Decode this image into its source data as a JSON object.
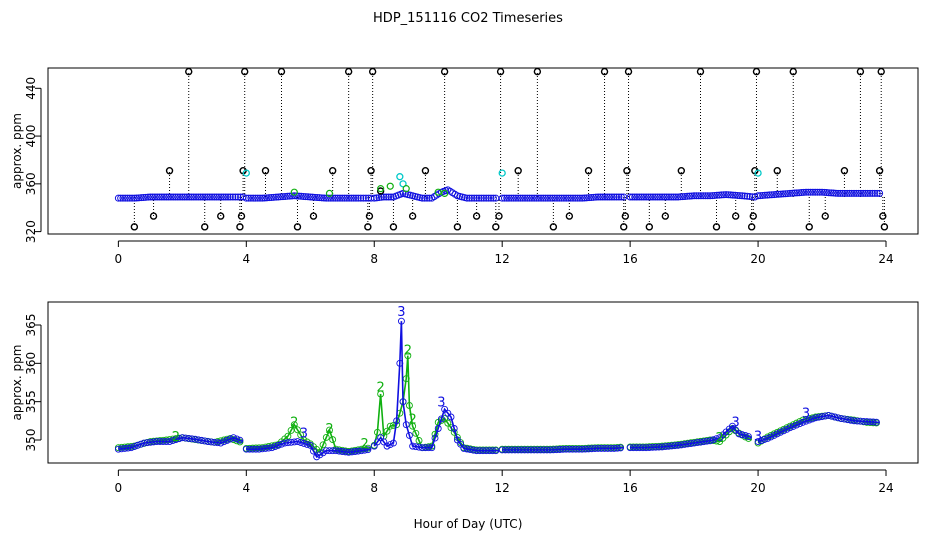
{
  "figure": {
    "title": "HDP_151116  CO2 Timeseries",
    "xlabel": "Hour of Day (UTC)"
  },
  "chart_data": [
    {
      "type": "scatter",
      "title": "HDP_151116  CO2 Timeseries",
      "xlabel": "",
      "ylabel": "approx. ppm",
      "xlim": [
        -2.2,
        25
      ],
      "ylim": [
        318,
        457
      ],
      "xticks": [
        0,
        4,
        8,
        12,
        16,
        20,
        24
      ],
      "yticks": [
        320,
        360,
        400,
        440
      ],
      "ytick_labels": [
        "320",
        "360",
        "400",
        "440"
      ],
      "colors": {
        "baseline": "#1010e0",
        "flag": "#000000",
        "cyan": "#00c8c8",
        "green": "#10b010"
      },
      "baseline_segments": [
        {
          "name": "segment 1",
          "x": [
            0.0,
            0.5,
            1.0,
            1.5,
            2.0,
            2.5,
            3.0,
            3.5,
            3.9
          ],
          "y": [
            348,
            348,
            349,
            349,
            349,
            349,
            349,
            349,
            349
          ]
        },
        {
          "name": "segment 2",
          "x": [
            4.0,
            4.5,
            5.0,
            5.5,
            6.0,
            6.5,
            7.0,
            7.5,
            7.9
          ],
          "y": [
            348,
            348,
            349,
            350,
            349,
            348,
            348,
            348,
            348
          ]
        },
        {
          "name": "segment 3",
          "x": [
            8.0,
            8.3,
            8.6,
            8.9,
            9.2,
            9.5,
            9.8,
            10.1,
            10.3,
            10.6,
            10.9,
            11.2,
            11.5,
            11.8
          ],
          "y": [
            348,
            349,
            349,
            352,
            350,
            348,
            348,
            353,
            355,
            350,
            348,
            348,
            348,
            348
          ]
        },
        {
          "name": "segment 4",
          "x": [
            12.0,
            12.5,
            13.0,
            13.5,
            14.0,
            14.5,
            15.0,
            15.5,
            15.8
          ],
          "y": [
            348,
            348,
            348,
            348,
            348,
            348,
            349,
            349,
            349
          ]
        },
        {
          "name": "segment 5",
          "x": [
            16.0,
            16.5,
            17.0,
            17.5,
            18.0,
            18.5,
            19.0,
            19.5,
            19.9
          ],
          "y": [
            349,
            349,
            349,
            349,
            350,
            350,
            351,
            350,
            349
          ]
        },
        {
          "name": "segment 6",
          "x": [
            20.0,
            20.5,
            21.0,
            21.5,
            22.0,
            22.5,
            23.0,
            23.5,
            23.8
          ],
          "y": [
            350,
            351,
            352,
            353,
            353,
            352,
            352,
            352,
            352
          ]
        }
      ],
      "flag_points": {
        "x": [
          0.5,
          1.1,
          1.6,
          2.2,
          2.7,
          3.2,
          3.8,
          3.85,
          3.9,
          3.95,
          4.6,
          5.1,
          5.6,
          6.1,
          6.7,
          7.2,
          7.8,
          7.85,
          7.9,
          7.95,
          8.2,
          8.6,
          9.2,
          9.6,
          10.2,
          10.6,
          11.2,
          11.8,
          11.9,
          11.95,
          12.5,
          13.1,
          13.6,
          14.1,
          14.7,
          15.2,
          15.8,
          15.85,
          15.9,
          15.95,
          16.6,
          17.1,
          17.6,
          18.2,
          18.7,
          19.3,
          19.8,
          19.85,
          19.9,
          19.95,
          20.6,
          21.1,
          21.6,
          22.1,
          22.7,
          23.2,
          23.8,
          23.85,
          23.9,
          23.95
        ],
        "y": [
          324,
          333,
          371,
          454,
          324,
          333,
          324,
          333,
          371,
          454,
          371,
          454,
          324,
          333,
          371,
          454,
          324,
          333,
          371,
          454,
          354,
          324,
          333,
          371,
          454,
          324,
          333,
          324,
          333,
          454,
          371,
          454,
          324,
          333,
          371,
          454,
          324,
          333,
          371,
          454,
          324,
          333,
          371,
          454,
          324,
          333,
          324,
          333,
          371,
          454,
          371,
          454,
          324,
          333,
          371,
          454,
          371,
          454,
          333,
          324
        ]
      },
      "cyan_points": {
        "x": [
          4.0,
          8.8,
          8.9,
          12.0,
          20.0
        ],
        "y": [
          369,
          366,
          360,
          369,
          369
        ]
      },
      "green_points": {
        "x": [
          5.5,
          6.6,
          8.2,
          8.5,
          9.0,
          10.0,
          10.2
        ],
        "y": [
          353,
          352,
          356,
          358,
          356,
          353,
          352
        ]
      }
    },
    {
      "type": "line",
      "title": "",
      "xlabel": "Hour of Day (UTC)",
      "ylabel": "approx. ppm",
      "xlim": [
        -2.2,
        25
      ],
      "ylim": [
        347,
        368
      ],
      "xticks": [
        0,
        4,
        8,
        12,
        16,
        20,
        24
      ],
      "yticks": [
        350,
        355,
        360,
        365
      ],
      "ytick_labels": [
        "350",
        "355",
        "360",
        "365"
      ],
      "series": [
        {
          "name": "3",
          "color": "#1010e0",
          "segments": [
            {
              "x": [
                0.0,
                0.4,
                0.8,
                1.2,
                1.6,
                2.0,
                2.4,
                2.8,
                3.2,
                3.6,
                3.9
              ],
              "y": [
                348.8,
                349.0,
                349.6,
                349.8,
                349.8,
                350.3,
                350.1,
                349.8,
                349.6,
                350.3,
                349.8
              ]
            },
            {
              "x": [
                4.0,
                4.4,
                4.8,
                5.2,
                5.6,
                6.0,
                6.2,
                6.5,
                6.8,
                7.2,
                7.6,
                7.9
              ],
              "y": [
                348.8,
                348.8,
                349.0,
                349.6,
                349.8,
                349.3,
                347.8,
                348.6,
                348.6,
                348.4,
                348.6,
                348.8
              ]
            },
            {
              "x": [
                8.0,
                8.2,
                8.4,
                8.6,
                8.7,
                8.8,
                8.85,
                8.9,
                9.0,
                9.2,
                9.5,
                9.8,
                10.0,
                10.2,
                10.4,
                10.6,
                10.8,
                11.2,
                11.6,
                11.9
              ],
              "y": [
                349.2,
                350.3,
                349.2,
                349.6,
                352.5,
                360.0,
                365.5,
                355.0,
                352.0,
                349.2,
                349.0,
                349.0,
                351.5,
                354.0,
                353.0,
                350.0,
                348.9,
                348.6,
                348.6,
                348.6
              ]
            },
            {
              "x": [
                12.0,
                12.5,
                13.0,
                13.5,
                14.0,
                14.5,
                15.0,
                15.5,
                15.8
              ],
              "y": [
                348.7,
                348.7,
                348.7,
                348.7,
                348.8,
                348.8,
                348.9,
                348.9,
                349.0
              ]
            },
            {
              "x": [
                16.0,
                16.5,
                17.0,
                17.5,
                18.0,
                18.5,
                18.8,
                19.2,
                19.4,
                19.6,
                19.8
              ],
              "y": [
                349.0,
                349.0,
                349.1,
                349.3,
                349.6,
                349.9,
                350.3,
                351.8,
                350.8,
                350.6,
                350.3
              ]
            },
            {
              "x": [
                20.0,
                20.3,
                20.6,
                21.0,
                21.4,
                21.8,
                22.2,
                22.6,
                23.0,
                23.4,
                23.8
              ],
              "y": [
                349.8,
                350.2,
                350.8,
                351.6,
                352.3,
                352.9,
                353.2,
                352.8,
                352.5,
                352.4,
                352.3
              ]
            }
          ]
        },
        {
          "name": "2",
          "color": "#10b010",
          "segments": [
            {
              "x": [
                0.0,
                0.5,
                1.0,
                1.5,
                2.0,
                2.5,
                3.0,
                3.5,
                3.9
              ],
              "y": [
                349.0,
                349.2,
                349.8,
                350.0,
                350.3,
                350.0,
                349.7,
                350.2,
                349.6
              ]
            },
            {
              "x": [
                4.0,
                4.5,
                5.0,
                5.3,
                5.5,
                5.8,
                6.0,
                6.3,
                6.6,
                6.8,
                7.2,
                7.6,
                7.9
              ],
              "y": [
                348.9,
                349.0,
                349.4,
                350.5,
                352.0,
                350.0,
                349.5,
                348.4,
                351.3,
                348.8,
                348.5,
                348.8,
                349.0
              ]
            },
            {
              "x": [
                8.0,
                8.1,
                8.2,
                8.3,
                8.5,
                8.7,
                8.9,
                9.0,
                9.05,
                9.1,
                9.2,
                9.5,
                9.8,
                10.0,
                10.2,
                10.5,
                10.8,
                11.2,
                11.6,
                11.9
              ],
              "y": [
                349.3,
                351.0,
                356.0,
                350.5,
                351.8,
                352.0,
                355.0,
                358.0,
                361.0,
                354.5,
                351.8,
                349.0,
                349.2,
                352.3,
                352.8,
                351.0,
                349.0,
                348.7,
                348.7,
                348.7
              ]
            },
            {
              "x": [
                12.0,
                12.5,
                13.0,
                13.5,
                14.0,
                14.5,
                15.0,
                15.5,
                15.8
              ],
              "y": [
                348.8,
                348.8,
                348.8,
                348.8,
                348.9,
                348.9,
                349.0,
                349.0,
                349.1
              ]
            },
            {
              "x": [
                16.0,
                16.5,
                17.0,
                17.5,
                18.0,
                18.5,
                18.8,
                19.2,
                19.4,
                19.6,
                19.8
              ],
              "y": [
                349.1,
                349.1,
                349.2,
                349.4,
                349.7,
                350.0,
                349.8,
                351.5,
                350.9,
                350.4,
                350.0
              ]
            },
            {
              "x": [
                20.0,
                20.3,
                20.6,
                21.0,
                21.4,
                21.8,
                22.2,
                22.6,
                23.0,
                23.4,
                23.8
              ],
              "y": [
                349.6,
                350.4,
                351.0,
                351.8,
                352.6,
                353.0,
                353.2,
                352.8,
                352.6,
                352.3,
                352.2
              ]
            }
          ]
        }
      ],
      "labels": [
        {
          "text": "3",
          "series": "3",
          "x": 8.85,
          "y": 366.6
        },
        {
          "text": "3",
          "series": "3",
          "x": 10.1,
          "y": 354.8
        },
        {
          "text": "3",
          "series": "3",
          "x": 19.3,
          "y": 352.2
        },
        {
          "text": "3",
          "series": "3",
          "x": 20.0,
          "y": 350.4
        },
        {
          "text": "3",
          "series": "3",
          "x": 21.5,
          "y": 353.4
        },
        {
          "text": "3",
          "series": "3",
          "x": 5.8,
          "y": 350.8
        },
        {
          "text": "2",
          "series": "2",
          "x": 8.2,
          "y": 356.8
        },
        {
          "text": "2",
          "series": "2",
          "x": 9.05,
          "y": 361.6
        },
        {
          "text": "2",
          "series": "2",
          "x": 5.5,
          "y": 352.2
        },
        {
          "text": "2",
          "series": "2",
          "x": 6.6,
          "y": 351.4
        },
        {
          "text": "2",
          "series": "2",
          "x": 1.8,
          "y": 350.3
        },
        {
          "text": "2",
          "series": "2",
          "x": 9.2,
          "y": 352.6
        },
        {
          "text": "2",
          "series": "2",
          "x": 7.7,
          "y": 349.4
        },
        {
          "text": "2",
          "series": "2",
          "x": 18.8,
          "y": 350.2
        }
      ]
    }
  ]
}
